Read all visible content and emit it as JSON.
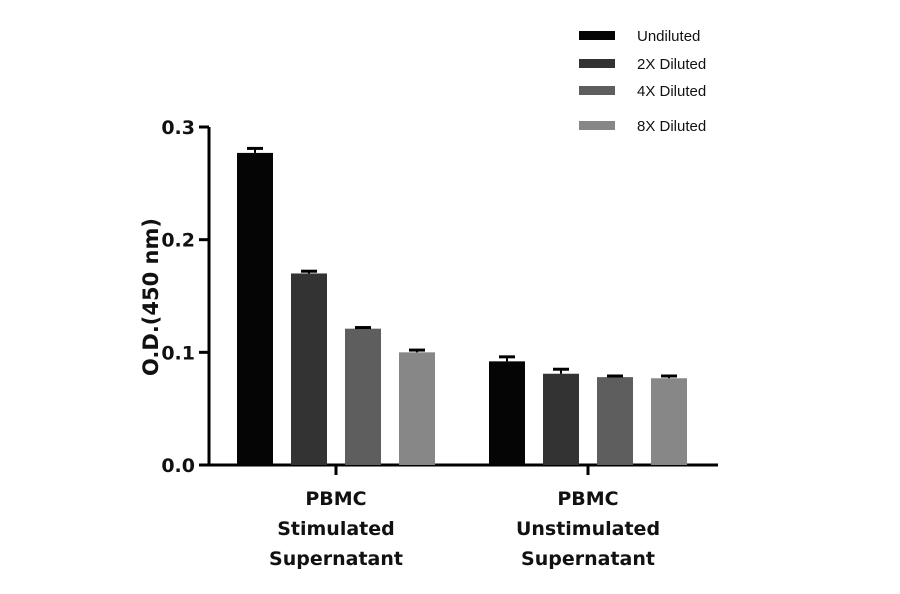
{
  "chart_data": {
    "type": "bar",
    "ylabel": "O.D.(450 nm)",
    "ylim": [
      0,
      0.3
    ],
    "yticks": [
      "0.0",
      "0.1",
      "0.2",
      "0.3"
    ],
    "ytick_values": [
      0,
      0.1,
      0.2,
      0.3
    ],
    "categories": [
      [
        "PBMC",
        "Stimulated",
        "Supernatant"
      ],
      [
        "PBMC",
        "Unstimulated",
        "Supernatant"
      ]
    ],
    "legend_placement": "top-right",
    "grid": false,
    "error_bars": true,
    "series": [
      {
        "name": "Undiluted",
        "color": "#050505",
        "values": [
          0.277,
          0.092
        ],
        "errors": [
          0.004,
          0.004
        ]
      },
      {
        "name": "2X Diluted",
        "color": "#333333",
        "values": [
          0.17,
          0.081
        ],
        "errors": [
          0.002,
          0.004
        ]
      },
      {
        "name": "4X Diluted",
        "color": "#5e5e5e",
        "values": [
          0.121,
          0.078
        ],
        "errors": [
          0.001,
          0.001
        ]
      },
      {
        "name": "8X Diluted",
        "color": "#878787",
        "values": [
          0.1,
          0.077
        ],
        "errors": [
          0.002,
          0.002
        ]
      }
    ]
  }
}
